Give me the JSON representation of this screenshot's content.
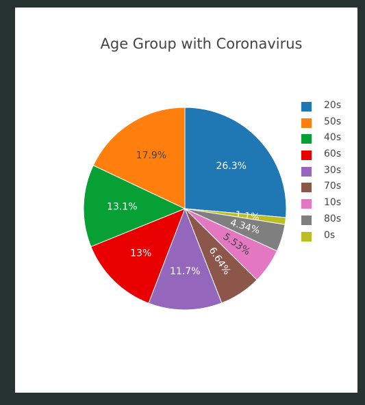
{
  "chart_data": {
    "type": "pie",
    "title": "Age Group with Coronavirus",
    "slices": [
      {
        "label": "20s",
        "value": 26.3,
        "text": "26.3%",
        "color": "#1f77b4",
        "text_color": "#ffffff"
      },
      {
        "label": "0s",
        "value": 1.1,
        "text": "1.1%",
        "color": "#bcbd22",
        "text_color": "#ffffff"
      },
      {
        "label": "80s",
        "value": 4.34,
        "text": "4.34%",
        "color": "#7f7f7f",
        "text_color": "#ffffff"
      },
      {
        "label": "10s",
        "value": 5.53,
        "text": "5.53%",
        "color": "#e377c2",
        "text_color": "#444444"
      },
      {
        "label": "70s",
        "value": 6.64,
        "text": "6.64%",
        "color": "#8c564b",
        "text_color": "#ffffff"
      },
      {
        "label": "30s",
        "value": 11.7,
        "text": "11.7%",
        "color": "#9467bd",
        "text_color": "#ffffff"
      },
      {
        "label": "60s",
        "value": 13.0,
        "text": "13%",
        "color": "#e80000",
        "text_color": "#ffffff"
      },
      {
        "label": "40s",
        "value": 13.1,
        "text": "13.1%",
        "color": "#07a035",
        "text_color": "#ffffff"
      },
      {
        "label": "50s",
        "value": 17.9,
        "text": "17.9%",
        "color": "#ff7f0e",
        "text_color": "#444444"
      }
    ],
    "legend": {
      "placement": "right",
      "items": [
        {
          "label": "20s",
          "color": "#1f77b4"
        },
        {
          "label": "50s",
          "color": "#ff7f0e"
        },
        {
          "label": "40s",
          "color": "#07a035"
        },
        {
          "label": "60s",
          "color": "#e80000"
        },
        {
          "label": "30s",
          "color": "#9467bd"
        },
        {
          "label": "70s",
          "color": "#8c564b"
        },
        {
          "label": "10s",
          "color": "#e377c2"
        },
        {
          "label": "80s",
          "color": "#7f7f7f"
        },
        {
          "label": "0s",
          "color": "#bcbd22"
        }
      ]
    }
  }
}
